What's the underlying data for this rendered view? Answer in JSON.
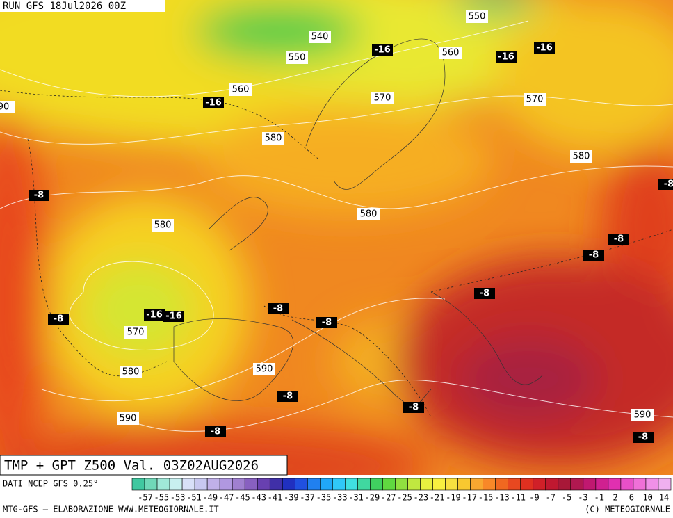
{
  "header": {
    "run": "RUN GFS 18Jul2026 00Z"
  },
  "map": {
    "geopotential_labels": [
      550,
      540,
      550,
      560,
      560,
      570,
      570,
      580,
      580,
      580,
      580,
      570,
      580,
      590,
      590,
      590,
      90
    ],
    "temperature_labels": [
      -16,
      -16,
      -16,
      -16,
      -16,
      -16,
      -8,
      -8,
      -8,
      -8,
      -8,
      -8,
      -8,
      -8,
      -8,
      -8,
      -8,
      -8
    ]
  },
  "title": "TMP + GPT Z500 Val. 03Z02AUG2026",
  "legend": {
    "source": "DATI NCEP GFS 0.25°",
    "scale": [
      -57,
      -55,
      -53,
      -51,
      -49,
      -47,
      -45,
      -43,
      -41,
      -39,
      -37,
      -35,
      -33,
      -31,
      -29,
      -27,
      -25,
      -23,
      -21,
      -19,
      -17,
      -15,
      -13,
      -11,
      -9,
      -7,
      -5,
      -3,
      -1,
      2,
      6,
      10,
      14
    ]
  },
  "footer": {
    "left": "MTG-GFS — ELABORAZIONE WWW.METEOGIORNALE.IT",
    "right": "(C) METEOGIORNALE"
  }
}
